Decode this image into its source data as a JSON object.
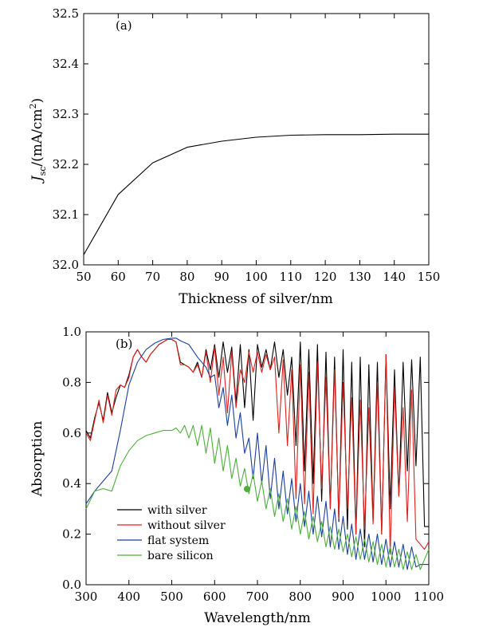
{
  "chart_data": [
    {
      "type": "line",
      "panel_label": "(a)",
      "xlabel": "Thickness of silver/nm",
      "ylabel_parts": {
        "J": "J",
        "sub": "sc",
        "unit": "/(mA/cm",
        "sup": "2",
        "close": ")"
      },
      "xlim": [
        50,
        150
      ],
      "ylim": [
        32.0,
        32.5
      ],
      "xticks": [
        "50",
        "60",
        "70",
        "80",
        "90",
        "100",
        "110",
        "120",
        "130",
        "140",
        "150"
      ],
      "yticks": [
        "32.0",
        "32.1",
        "32.2",
        "32.3",
        "32.4",
        "32.5"
      ],
      "grid": false,
      "series": [
        {
          "color": "#000000",
          "x": [
            50,
            60,
            70,
            80,
            90,
            100,
            110,
            120,
            130,
            140,
            150
          ],
          "y": [
            32.02,
            32.14,
            32.203,
            32.234,
            32.246,
            32.254,
            32.258,
            32.259,
            32.259,
            32.26,
            32.26
          ]
        }
      ]
    },
    {
      "type": "line",
      "panel_label": "(b)",
      "xlabel": "Wavelength/nm",
      "ylabel": "Absorption",
      "xlim": [
        300,
        1100
      ],
      "ylim": [
        0.0,
        1.0
      ],
      "xticks": [
        "300",
        "400",
        "500",
        "600",
        "700",
        "800",
        "900",
        "1000",
        "1100"
      ],
      "yticks": [
        "0.0",
        "0.2",
        "0.4",
        "0.6",
        "0.8",
        "1.0"
      ],
      "grid": false,
      "legend_position": "bottom-left",
      "series": [
        {
          "name": "with silver",
          "color": "#000000",
          "x": [
            300,
            310,
            320,
            330,
            340,
            350,
            360,
            370,
            380,
            390,
            400,
            410,
            420,
            430,
            440,
            450,
            460,
            470,
            480,
            490,
            500,
            510,
            520,
            530,
            540,
            550,
            560,
            570,
            580,
            590,
            600,
            610,
            620,
            630,
            640,
            650,
            660,
            670,
            680,
            690,
            700,
            710,
            720,
            730,
            740,
            750,
            760,
            770,
            780,
            790,
            800,
            810,
            820,
            830,
            840,
            850,
            860,
            870,
            880,
            890,
            900,
            910,
            920,
            930,
            940,
            950,
            960,
            970,
            980,
            990,
            1000,
            1010,
            1020,
            1030,
            1040,
            1050,
            1060,
            1070,
            1080,
            1090,
            1100
          ],
          "y": [
            0.61,
            0.58,
            0.66,
            0.72,
            0.65,
            0.76,
            0.68,
            0.74,
            0.79,
            0.78,
            0.83,
            0.9,
            0.93,
            0.9,
            0.88,
            0.91,
            0.93,
            0.95,
            0.96,
            0.97,
            0.97,
            0.96,
            0.88,
            0.87,
            0.86,
            0.84,
            0.88,
            0.82,
            0.93,
            0.85,
            0.95,
            0.82,
            0.96,
            0.84,
            0.94,
            0.72,
            0.95,
            0.7,
            0.93,
            0.65,
            0.95,
            0.86,
            0.93,
            0.85,
            0.96,
            0.82,
            0.93,
            0.75,
            0.9,
            0.55,
            0.96,
            0.45,
            0.93,
            0.4,
            0.95,
            0.33,
            0.92,
            0.3,
            0.9,
            0.25,
            0.93,
            0.22,
            0.88,
            0.2,
            0.9,
            0.15,
            0.87,
            0.25,
            0.88,
            0.2,
            0.91,
            0.3,
            0.85,
            0.35,
            0.88,
            0.45,
            0.89,
            0.47,
            0.9,
            0.23,
            0.23
          ]
        },
        {
          "name": "without silver",
          "color": "#e0201c",
          "x": [
            300,
            310,
            320,
            330,
            340,
            350,
            360,
            370,
            380,
            390,
            400,
            410,
            420,
            430,
            440,
            450,
            460,
            470,
            480,
            490,
            500,
            510,
            520,
            530,
            540,
            550,
            560,
            570,
            580,
            590,
            600,
            610,
            620,
            630,
            640,
            650,
            660,
            670,
            680,
            690,
            700,
            710,
            720,
            730,
            740,
            750,
            760,
            770,
            780,
            790,
            800,
            810,
            820,
            830,
            840,
            850,
            860,
            870,
            880,
            890,
            900,
            910,
            920,
            930,
            940,
            950,
            960,
            970,
            980,
            990,
            1000,
            1010,
            1020,
            1030,
            1040,
            1050,
            1060,
            1070,
            1080,
            1090,
            1100
          ],
          "y": [
            0.6,
            0.57,
            0.65,
            0.73,
            0.64,
            0.75,
            0.67,
            0.77,
            0.79,
            0.78,
            0.82,
            0.9,
            0.93,
            0.9,
            0.88,
            0.91,
            0.93,
            0.95,
            0.96,
            0.97,
            0.97,
            0.96,
            0.87,
            0.87,
            0.86,
            0.84,
            0.87,
            0.82,
            0.92,
            0.8,
            0.94,
            0.75,
            0.9,
            0.68,
            0.92,
            0.7,
            0.85,
            0.8,
            0.92,
            0.84,
            0.92,
            0.84,
            0.91,
            0.85,
            0.9,
            0.6,
            0.89,
            0.55,
            0.85,
            0.34,
            0.87,
            0.32,
            0.84,
            0.28,
            0.88,
            0.38,
            0.82,
            0.3,
            0.85,
            0.26,
            0.8,
            0.3,
            0.74,
            0.2,
            0.73,
            0.22,
            0.7,
            0.24,
            0.8,
            0.2,
            0.91,
            0.12,
            0.78,
            0.35,
            0.7,
            0.25,
            0.77,
            0.18,
            0.16,
            0.14,
            0.17
          ]
        },
        {
          "name": "flat system",
          "color": "#1a3f9c",
          "x": [
            300,
            320,
            340,
            360,
            380,
            400,
            420,
            440,
            460,
            480,
            500,
            510,
            520,
            540,
            560,
            580,
            590,
            600,
            610,
            620,
            630,
            640,
            650,
            660,
            670,
            680,
            690,
            700,
            710,
            720,
            730,
            740,
            750,
            760,
            770,
            780,
            790,
            800,
            810,
            820,
            830,
            840,
            850,
            860,
            870,
            880,
            890,
            900,
            910,
            920,
            930,
            940,
            950,
            960,
            970,
            980,
            990,
            1000,
            1010,
            1020,
            1030,
            1040,
            1050,
            1060,
            1070,
            1080,
            1090,
            1100
          ],
          "y": [
            0.32,
            0.37,
            0.41,
            0.45,
            0.61,
            0.79,
            0.88,
            0.93,
            0.955,
            0.97,
            0.975,
            0.975,
            0.965,
            0.95,
            0.9,
            0.86,
            0.82,
            0.83,
            0.7,
            0.78,
            0.63,
            0.75,
            0.58,
            0.68,
            0.52,
            0.58,
            0.42,
            0.6,
            0.4,
            0.55,
            0.34,
            0.5,
            0.3,
            0.45,
            0.28,
            0.42,
            0.25,
            0.4,
            0.23,
            0.37,
            0.2,
            0.35,
            0.19,
            0.33,
            0.15,
            0.3,
            0.14,
            0.27,
            0.12,
            0.24,
            0.1,
            0.22,
            0.1,
            0.2,
            0.09,
            0.2,
            0.08,
            0.18,
            0.07,
            0.17,
            0.07,
            0.16,
            0.06,
            0.15,
            0.07,
            0.08,
            0.08,
            0.08
          ]
        },
        {
          "name": "bare silicon",
          "color": "#4fae3c",
          "x": [
            300,
            320,
            340,
            360,
            370,
            380,
            400,
            420,
            440,
            460,
            480,
            500,
            510,
            520,
            530,
            540,
            550,
            560,
            570,
            580,
            590,
            600,
            610,
            620,
            630,
            640,
            650,
            660,
            670,
            680,
            690,
            700,
            710,
            720,
            730,
            740,
            750,
            760,
            770,
            780,
            790,
            800,
            810,
            820,
            830,
            840,
            850,
            860,
            870,
            880,
            890,
            900,
            910,
            920,
            930,
            940,
            950,
            960,
            970,
            980,
            990,
            1000,
            1010,
            1020,
            1030,
            1040,
            1050,
            1060,
            1070,
            1080,
            1090,
            1100
          ],
          "y": [
            0.3,
            0.37,
            0.38,
            0.37,
            0.42,
            0.47,
            0.53,
            0.57,
            0.59,
            0.6,
            0.61,
            0.61,
            0.62,
            0.6,
            0.63,
            0.58,
            0.63,
            0.55,
            0.63,
            0.52,
            0.62,
            0.48,
            0.58,
            0.45,
            0.55,
            0.42,
            0.5,
            0.39,
            0.46,
            0.36,
            0.44,
            0.33,
            0.41,
            0.3,
            0.38,
            0.27,
            0.36,
            0.25,
            0.34,
            0.22,
            0.31,
            0.2,
            0.29,
            0.18,
            0.27,
            0.17,
            0.25,
            0.15,
            0.23,
            0.14,
            0.22,
            0.13,
            0.2,
            0.11,
            0.19,
            0.1,
            0.18,
            0.09,
            0.17,
            0.08,
            0.16,
            0.07,
            0.15,
            0.07,
            0.14,
            0.06,
            0.13,
            0.06,
            0.12,
            0.06,
            0.1,
            0.14
          ]
        }
      ]
    }
  ]
}
